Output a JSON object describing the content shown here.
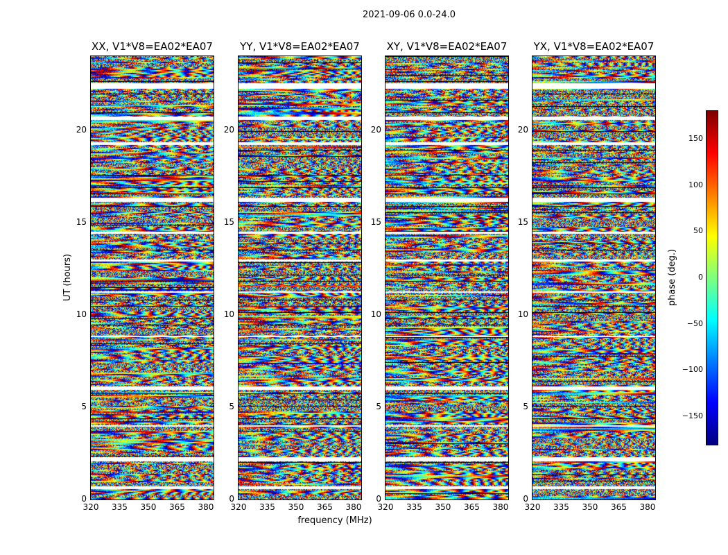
{
  "chart_data": {
    "type": "heatmap",
    "title": "2021-09-06 0.0-24.0",
    "xlabel": "frequency (MHz)",
    "ylabel": "UT (hours)",
    "xlim": [
      320,
      384
    ],
    "ylim": [
      0,
      24
    ],
    "xticks": [
      "320",
      "335",
      "350",
      "365",
      "380"
    ],
    "xtick_values": [
      320,
      335,
      350,
      365,
      380
    ],
    "yticks": [
      "0",
      "5",
      "10",
      "15",
      "20"
    ],
    "ytick_values": [
      0,
      5,
      10,
      15,
      20
    ],
    "panels": [
      {
        "title": "XX, V1*V8=EA02*EA07",
        "seed": 11
      },
      {
        "title": "YY, V1*V8=EA02*EA07",
        "seed": 23
      },
      {
        "title": "XY, V1*V8=EA02*EA07",
        "seed": 37
      },
      {
        "title": "YX, V1*V8=EA02*EA07",
        "seed": 41
      }
    ],
    "gaps_hours": [
      [
        22.55,
        22.25
      ],
      [
        20.75,
        20.55
      ],
      [
        19.35,
        19.2
      ],
      [
        16.35,
        16.15
      ],
      [
        14.5,
        14.4
      ],
      [
        13.0,
        12.9
      ],
      [
        11.3,
        11.2
      ],
      [
        8.9,
        8.8
      ],
      [
        6.15,
        5.95
      ],
      [
        4.05,
        3.95
      ],
      [
        2.3,
        2.1
      ],
      [
        0.75,
        0.6
      ]
    ],
    "colorbar": {
      "label": "phase (deg.)",
      "range": [
        -180,
        180
      ],
      "ticks": [
        "150",
        "100",
        "50",
        "0",
        "−50",
        "−100",
        "−150"
      ],
      "tick_values": [
        150,
        100,
        50,
        0,
        -50,
        -100,
        -150
      ],
      "colormap": "jet"
    }
  }
}
